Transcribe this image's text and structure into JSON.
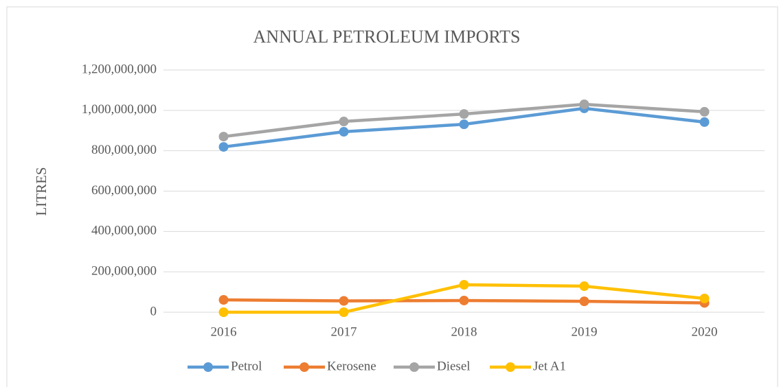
{
  "chart_data": {
    "type": "line",
    "title": "ANNUAL PETROLEUM IMPORTS",
    "y_label": "LITRES",
    "categories": [
      "2016",
      "2017",
      "2018",
      "2019",
      "2020"
    ],
    "series": [
      {
        "name": "Petrol",
        "color": "#5b9bd5",
        "values": [
          819000000,
          894000000,
          931000000,
          1010000000,
          942000000
        ]
      },
      {
        "name": "Kerosene",
        "color": "#ed7d31",
        "values": [
          61000000,
          56000000,
          58000000,
          54000000,
          46000000
        ]
      },
      {
        "name": "Diesel",
        "color": "#a5a5a5",
        "values": [
          870000000,
          945000000,
          982000000,
          1030000000,
          993000000
        ]
      },
      {
        "name": "Jet A1",
        "color": "#ffc000",
        "values": [
          0,
          0,
          136000000,
          129000000,
          68000000
        ]
      }
    ],
    "ylim": [
      0,
      1200000000
    ],
    "yticks": [
      0,
      {
        "value": 200000000,
        "label": "200,000,000"
      },
      {
        "value": 400000000,
        "label": "400,000,000"
      },
      {
        "value": 600000000,
        "label": "600,000,000"
      },
      {
        "value": 800000000,
        "label": "800,000,000"
      },
      {
        "value": 1000000000,
        "label": "1,000,000,000"
      },
      {
        "value": 1200000000,
        "label": "1,200,000,000"
      }
    ],
    "grid": true,
    "legend": "bottom"
  }
}
